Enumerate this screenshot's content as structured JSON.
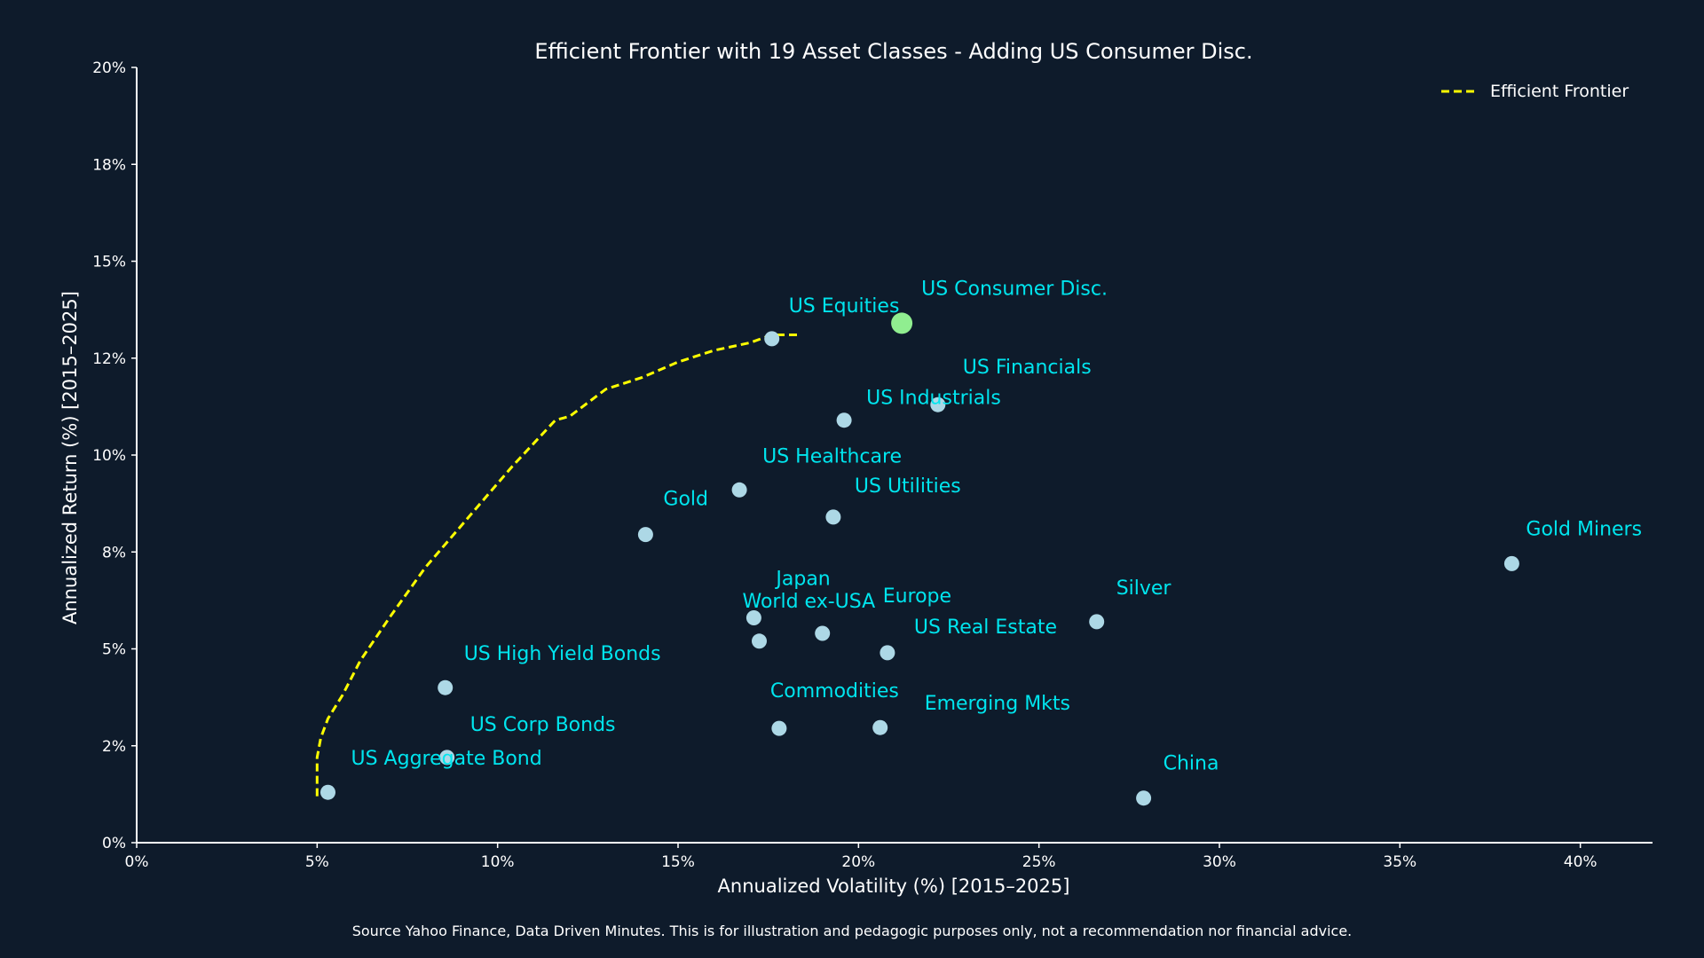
{
  "colors": {
    "background": "#0e1b2b",
    "axis": "#ffffff",
    "point": "#add8e6",
    "highlight_point": "#90ee90",
    "label": "#00e5ee",
    "frontier": "#ffff00"
  },
  "footnote": "Source Yahoo Finance, Data Driven Minutes. This is for illustration and pedagogic purposes only, not a recommendation nor financial advice.",
  "chart_data": {
    "type": "scatter",
    "title": "Efficient Frontier with 19 Asset Classes - Adding US Consumer Disc.",
    "xlabel": "Annualized Volatility (%) [2015–2025]",
    "ylabel": "Annualized Return (%) [2015–2025]",
    "xlim": [
      0,
      42
    ],
    "ylim": [
      0,
      20
    ],
    "x_ticks": [
      0,
      5,
      10,
      15,
      20,
      25,
      30,
      35,
      40
    ],
    "x_tick_labels": [
      "0%",
      "5%",
      "10%",
      "15%",
      "20%",
      "25%",
      "30%",
      "35%",
      "40%"
    ],
    "y_ticks": [
      0,
      2.5,
      5,
      7.5,
      10,
      12.5,
      15,
      17.5,
      20
    ],
    "y_tick_labels": [
      "0%",
      "2%",
      "5%",
      "8%",
      "10%",
      "12%",
      "15%",
      "18%",
      "20%"
    ],
    "grid": false,
    "legend": {
      "position": "top-right",
      "entries": [
        {
          "name": "Efficient Frontier",
          "style": "dashed-line",
          "color": "#ffff00"
        }
      ]
    },
    "points": [
      {
        "name": "US Equities",
        "x": 17.6,
        "y": 13.0,
        "highlight": false
      },
      {
        "name": "US Consumer Disc.",
        "x": 21.2,
        "y": 13.4,
        "highlight": true
      },
      {
        "name": "US Financials",
        "x": 22.2,
        "y": 11.3,
        "highlight": false
      },
      {
        "name": "US Industrials",
        "x": 19.6,
        "y": 10.9,
        "highlight": false
      },
      {
        "name": "US Healthcare",
        "x": 16.7,
        "y": 9.1,
        "highlight": false
      },
      {
        "name": "US Utilities",
        "x": 19.3,
        "y": 8.4,
        "highlight": false
      },
      {
        "name": "Gold",
        "x": 14.1,
        "y": 7.95,
        "highlight": false
      },
      {
        "name": "Gold Miners",
        "x": 38.1,
        "y": 7.2,
        "highlight": false
      },
      {
        "name": "Silver",
        "x": 26.6,
        "y": 5.7,
        "highlight": false
      },
      {
        "name": "Japan",
        "x": 17.1,
        "y": 5.8,
        "highlight": false
      },
      {
        "name": "World ex-USA",
        "x": 17.25,
        "y": 5.2,
        "highlight": false
      },
      {
        "name": "Europe",
        "x": 19.0,
        "y": 5.4,
        "highlight": false
      },
      {
        "name": "US Real Estate",
        "x": 20.8,
        "y": 4.9,
        "highlight": false
      },
      {
        "name": "US High Yield Bonds",
        "x": 8.55,
        "y": 4.0,
        "highlight": false
      },
      {
        "name": "Commodities",
        "x": 17.8,
        "y": 2.95,
        "highlight": false
      },
      {
        "name": "Emerging Mkts",
        "x": 20.6,
        "y": 2.97,
        "highlight": false
      },
      {
        "name": "US Corp Bonds",
        "x": 8.6,
        "y": 2.2,
        "highlight": false
      },
      {
        "name": "US Aggregate Bond",
        "x": 5.3,
        "y": 1.3,
        "highlight": false
      },
      {
        "name": "China",
        "x": 27.9,
        "y": 1.15,
        "highlight": false
      }
    ],
    "series": [
      {
        "name": "Efficient Frontier",
        "style": "dashed",
        "x": [
          5.0,
          5.0,
          5.1,
          5.3,
          5.7,
          6.2,
          7.0,
          8.0,
          9.2,
          10.4,
          11.6,
          12.0,
          13.0,
          14.0,
          15.0,
          16.0,
          17.0,
          17.6,
          18.3
        ],
        "y": [
          1.2,
          2.2,
          2.7,
          3.2,
          3.8,
          4.7,
          5.8,
          7.1,
          8.4,
          9.7,
          10.9,
          11.0,
          11.7,
          12.0,
          12.4,
          12.7,
          12.9,
          13.1,
          13.1
        ]
      }
    ]
  }
}
